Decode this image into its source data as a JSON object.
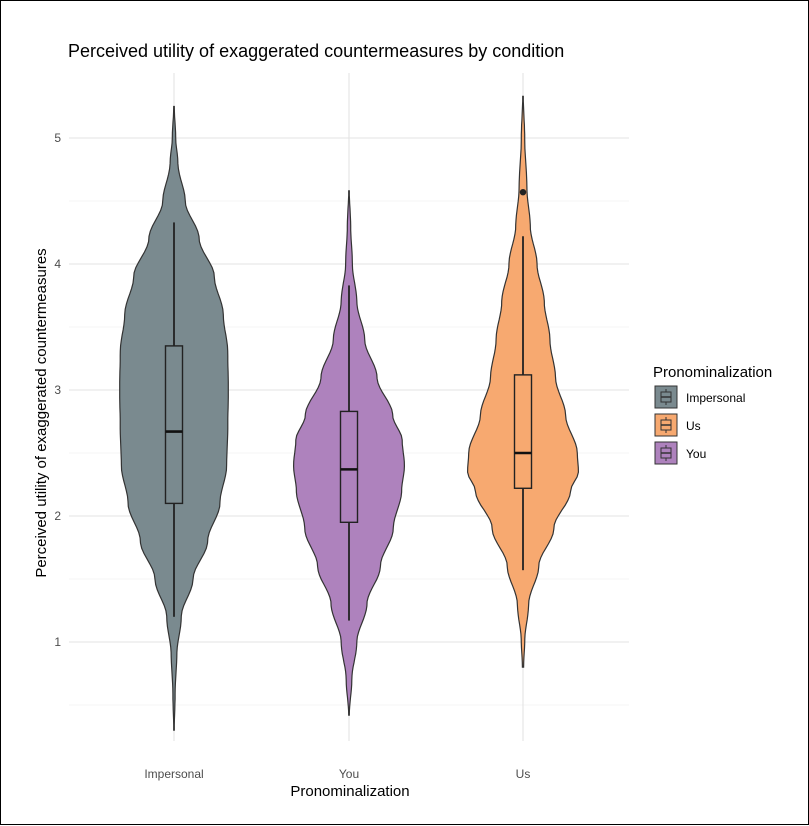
{
  "chart_data": {
    "type": "violin",
    "title": "Perceived utility of exaggerated countermeasures by condition",
    "xlabel": "Pronominalization",
    "ylabel": "Perceived utility of exaggerated countermeasures",
    "categories": [
      "Impersonal",
      "You",
      "Us"
    ],
    "ylim": [
      0.3,
      5.4
    ],
    "yticks": [
      1,
      2,
      3,
      4,
      5
    ],
    "grid": true,
    "legend": {
      "title": "Pronominalization",
      "placement": "right",
      "entries": [
        {
          "label": "Impersonal",
          "color": "#7a8a8f"
        },
        {
          "label": "Us",
          "color": "#f7a970"
        },
        {
          "label": "You",
          "color": "#ae82bd"
        }
      ]
    },
    "series": [
      {
        "category": "Impersonal",
        "color": "#7a8a8f",
        "min": 0.3,
        "max": 5.25,
        "whisker_low": 1.2,
        "q1": 2.1,
        "median": 2.67,
        "q3": 3.35,
        "whisker_high": 4.33,
        "outliers": [],
        "density": [
          [
            0.3,
            0.005
          ],
          [
            0.6,
            0.02
          ],
          [
            0.9,
            0.05
          ],
          [
            1.2,
            0.13
          ],
          [
            1.5,
            0.34
          ],
          [
            1.8,
            0.6
          ],
          [
            2.1,
            0.82
          ],
          [
            2.4,
            0.94
          ],
          [
            2.7,
            0.96
          ],
          [
            3.0,
            0.97
          ],
          [
            3.3,
            0.96
          ],
          [
            3.6,
            0.88
          ],
          [
            3.9,
            0.72
          ],
          [
            4.2,
            0.45
          ],
          [
            4.5,
            0.2
          ],
          [
            4.8,
            0.07
          ],
          [
            5.0,
            0.03
          ],
          [
            5.25,
            0.005
          ]
        ]
      },
      {
        "category": "You",
        "color": "#ae82bd",
        "min": 0.42,
        "max": 4.58,
        "whisker_low": 1.17,
        "q1": 1.95,
        "median": 2.37,
        "q3": 2.83,
        "whisker_high": 3.83,
        "outliers": [],
        "density": [
          [
            0.42,
            0.005
          ],
          [
            0.7,
            0.05
          ],
          [
            1.0,
            0.14
          ],
          [
            1.3,
            0.32
          ],
          [
            1.6,
            0.56
          ],
          [
            1.9,
            0.79
          ],
          [
            2.2,
            0.94
          ],
          [
            2.4,
            0.99
          ],
          [
            2.6,
            0.95
          ],
          [
            2.8,
            0.78
          ],
          [
            3.1,
            0.5
          ],
          [
            3.4,
            0.28
          ],
          [
            3.7,
            0.14
          ],
          [
            4.0,
            0.06
          ],
          [
            4.3,
            0.03
          ],
          [
            4.58,
            0.005
          ]
        ]
      },
      {
        "category": "Us",
        "color": "#f7a970",
        "min": 0.8,
        "max": 5.33,
        "whisker_low": 1.57,
        "q1": 2.22,
        "median": 2.5,
        "q3": 3.12,
        "whisker_high": 4.22,
        "outliers": [
          4.57
        ],
        "density": [
          [
            0.8,
            0.01
          ],
          [
            1.0,
            0.03
          ],
          [
            1.3,
            0.1
          ],
          [
            1.6,
            0.28
          ],
          [
            1.9,
            0.55
          ],
          [
            2.2,
            0.85
          ],
          [
            2.35,
            0.99
          ],
          [
            2.5,
            0.97
          ],
          [
            2.8,
            0.76
          ],
          [
            3.1,
            0.58
          ],
          [
            3.4,
            0.48
          ],
          [
            3.7,
            0.38
          ],
          [
            4.0,
            0.25
          ],
          [
            4.3,
            0.13
          ],
          [
            4.6,
            0.07
          ],
          [
            5.0,
            0.03
          ],
          [
            5.33,
            0.005
          ]
        ]
      }
    ]
  }
}
